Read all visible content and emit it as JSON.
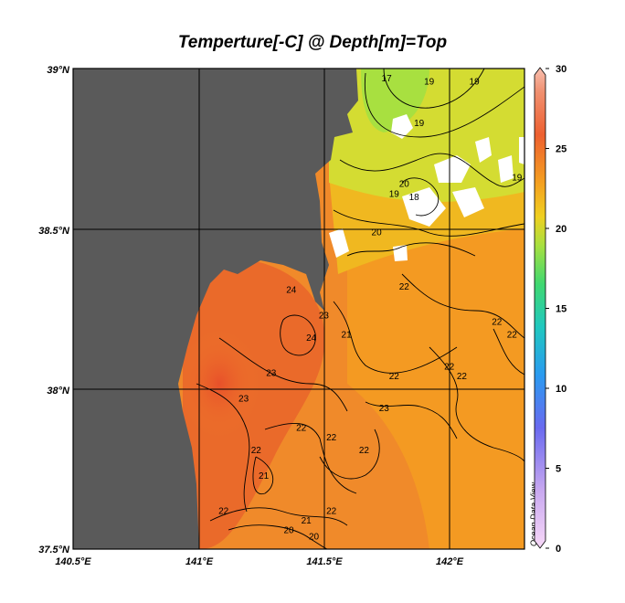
{
  "title": "Temperture[-C] @ Depth[m]=Top",
  "credit": "Ocean Data View",
  "map": {
    "lat_labels": [
      "39°N",
      "38.5°N",
      "38°N",
      "37.5°N"
    ],
    "lon_labels": [
      "140.5°E",
      "141°E",
      "141.5°E",
      "142°E"
    ],
    "extent": {
      "lon_min": 140.5,
      "lon_max": 142.3,
      "lat_min": 37.5,
      "lat_max": 39.0
    },
    "colors": {
      "land": "#5a5a5a",
      "warm": "#f07828",
      "hot": "#e85a28",
      "mid": "#f4a020",
      "cool": "#d4e030",
      "cold": "#a8e040",
      "nodata": "#ffffff"
    }
  },
  "colorbar": {
    "labels": [
      "30",
      "25",
      "20",
      "15",
      "10",
      "5",
      "0"
    ],
    "min": 0,
    "max": 30
  },
  "contour_labels": [
    {
      "text": "17",
      "lon": 141.75,
      "lat": 38.96
    },
    {
      "text": "19",
      "lon": 141.92,
      "lat": 38.95
    },
    {
      "text": "19",
      "lon": 142.1,
      "lat": 38.95
    },
    {
      "text": "19",
      "lon": 141.88,
      "lat": 38.82
    },
    {
      "text": "19",
      "lon": 142.27,
      "lat": 38.65
    },
    {
      "text": "20",
      "lon": 141.82,
      "lat": 38.63
    },
    {
      "text": "19",
      "lon": 141.78,
      "lat": 38.6
    },
    {
      "text": "18",
      "lon": 141.86,
      "lat": 38.59
    },
    {
      "text": "20",
      "lon": 141.71,
      "lat": 38.48
    },
    {
      "text": "24",
      "lon": 141.37,
      "lat": 38.3
    },
    {
      "text": "23",
      "lon": 141.5,
      "lat": 38.22
    },
    {
      "text": "24",
      "lon": 141.45,
      "lat": 38.15
    },
    {
      "text": "21",
      "lon": 141.59,
      "lat": 38.16
    },
    {
      "text": "22",
      "lon": 141.82,
      "lat": 38.31
    },
    {
      "text": "22",
      "lon": 142.19,
      "lat": 38.2
    },
    {
      "text": "22",
      "lon": 142.25,
      "lat": 38.16
    },
    {
      "text": "22",
      "lon": 141.78,
      "lat": 38.03
    },
    {
      "text": "22",
      "lon": 142.0,
      "lat": 38.06
    },
    {
      "text": "22",
      "lon": 142.05,
      "lat": 38.03
    },
    {
      "text": "23",
      "lon": 141.29,
      "lat": 38.04
    },
    {
      "text": "23",
      "lon": 141.18,
      "lat": 37.96
    },
    {
      "text": "23",
      "lon": 141.74,
      "lat": 37.93
    },
    {
      "text": "22",
      "lon": 141.41,
      "lat": 37.87
    },
    {
      "text": "22",
      "lon": 141.53,
      "lat": 37.84
    },
    {
      "text": "22",
      "lon": 141.23,
      "lat": 37.8
    },
    {
      "text": "22",
      "lon": 141.66,
      "lat": 37.8
    },
    {
      "text": "21",
      "lon": 141.26,
      "lat": 37.72
    },
    {
      "text": "22",
      "lon": 141.1,
      "lat": 37.61
    },
    {
      "text": "22",
      "lon": 141.53,
      "lat": 37.61
    },
    {
      "text": "21",
      "lon": 141.43,
      "lat": 37.58
    },
    {
      "text": "20",
      "lon": 141.36,
      "lat": 37.55
    },
    {
      "text": "20",
      "lon": 141.46,
      "lat": 37.53
    }
  ]
}
